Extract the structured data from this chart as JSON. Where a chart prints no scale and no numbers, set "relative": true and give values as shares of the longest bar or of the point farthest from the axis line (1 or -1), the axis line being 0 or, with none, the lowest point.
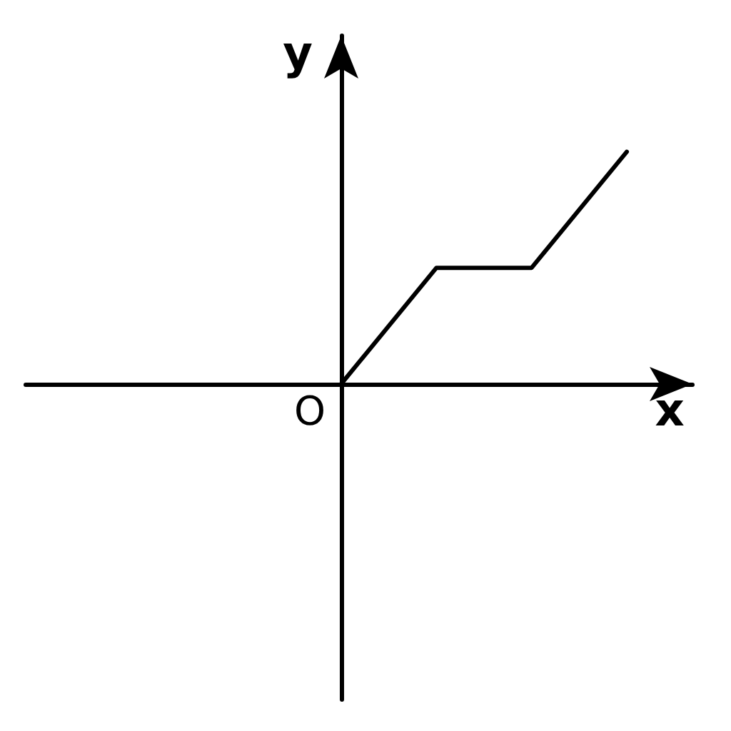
{
  "chart_data": {
    "type": "line",
    "xlabel": "x",
    "ylabel": "y",
    "annotations": [
      "O"
    ],
    "categories": [
      null,
      null,
      null,
      null
    ],
    "values": [
      0,
      0.5,
      0.5,
      1
    ],
    "color": "#000000",
    "relative": true,
    "marker": "none",
    "line_style": "solid"
  }
}
